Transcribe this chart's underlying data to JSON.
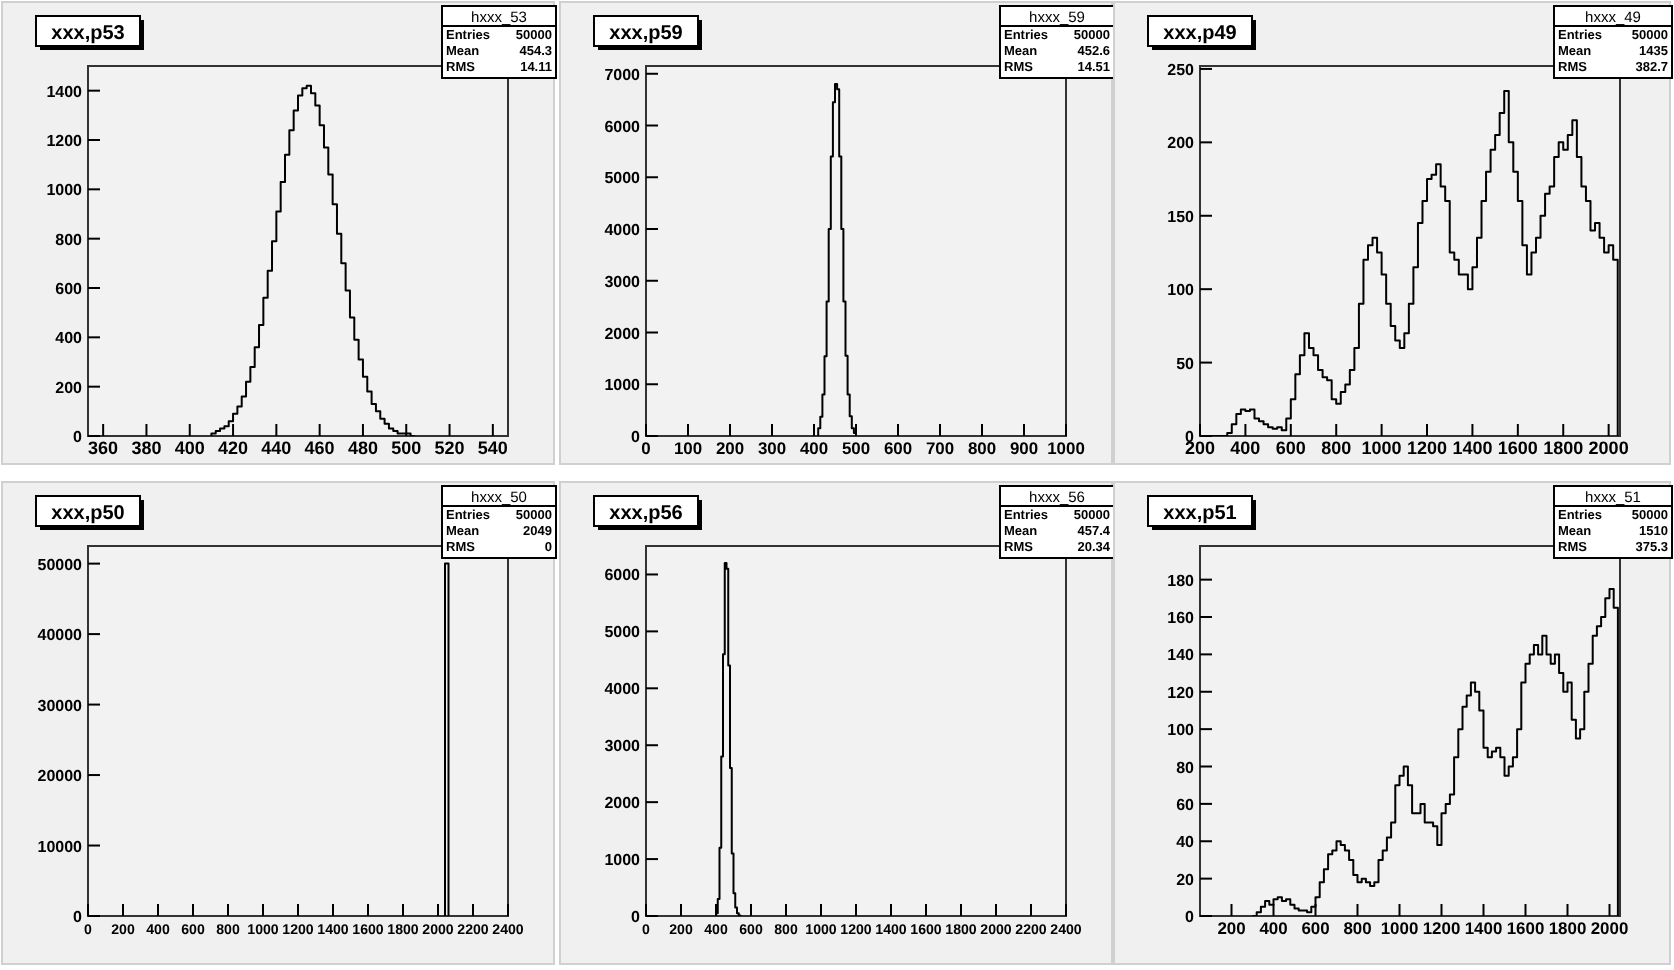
{
  "chart_data": [
    {
      "type": "histogram",
      "title": "xxx,p53",
      "color": "#000000",
      "annotations": [
        "hxxx_53",
        "Entries 50000",
        "Mean 454.3",
        "RMS 14.11"
      ],
      "xlim": [
        353,
        547
      ],
      "xticks": [
        360,
        380,
        400,
        420,
        440,
        460,
        480,
        500,
        520,
        540
      ],
      "ylim": [
        0,
        1500
      ],
      "yticks": [
        0,
        200,
        400,
        600,
        800,
        1000,
        1200,
        1400
      ],
      "bins": [
        410,
        412,
        414,
        416,
        418,
        420,
        422,
        424,
        426,
        428,
        430,
        432,
        434,
        436,
        438,
        440,
        442,
        444,
        446,
        448,
        450,
        452,
        454,
        456,
        458,
        460,
        462,
        464,
        466,
        468,
        470,
        472,
        474,
        476,
        478,
        480,
        482,
        484,
        486,
        488,
        490,
        492,
        494,
        496,
        498,
        500,
        502,
        504
      ],
      "values": [
        10,
        20,
        30,
        40,
        60,
        90,
        120,
        160,
        220,
        280,
        360,
        450,
        560,
        670,
        790,
        910,
        1030,
        1140,
        1240,
        1320,
        1380,
        1410,
        1420,
        1390,
        1340,
        1260,
        1170,
        1060,
        940,
        820,
        700,
        590,
        480,
        390,
        310,
        240,
        180,
        130,
        100,
        70,
        50,
        30,
        20,
        10,
        10,
        10,
        0
      ]
    },
    {
      "type": "histogram",
      "title": "xxx,p59",
      "color": "#000000",
      "annotations": [
        "hxxx_59",
        "Entries 50000",
        "Mean 452.6",
        "RMS 14.51"
      ],
      "xlim": [
        0,
        1000
      ],
      "xticks": [
        0,
        100,
        200,
        300,
        400,
        500,
        600,
        700,
        800,
        900,
        1000
      ],
      "ylim": [
        0,
        7150
      ],
      "yticks": [
        0,
        1000,
        2000,
        3000,
        4000,
        5000,
        6000,
        7000
      ],
      "bins": [
        410,
        415,
        420,
        425,
        430,
        435,
        440,
        445,
        450,
        455,
        460,
        465,
        470,
        475,
        480,
        485,
        490,
        495,
        500
      ],
      "values": [
        150,
        370,
        800,
        1540,
        2600,
        4000,
        5400,
        6450,
        6800,
        6700,
        5400,
        4000,
        2600,
        1550,
        800,
        380,
        150,
        60
      ]
    },
    {
      "type": "histogram",
      "title": "xxx,p49",
      "color": "#000000",
      "annotations": [
        "hxxx_49",
        "Entries 50000",
        "Mean 1435",
        "RMS 382.7"
      ],
      "xlim": [
        200,
        2050
      ],
      "xticks": [
        200,
        400,
        600,
        800,
        1000,
        1200,
        1400,
        1600,
        1800,
        2000
      ],
      "ylim": [
        0,
        252
      ],
      "yticks": [
        0,
        50,
        100,
        150,
        200,
        250
      ],
      "bins": [
        200,
        220,
        240,
        260,
        280,
        300,
        320,
        340,
        360,
        380,
        400,
        420,
        440,
        460,
        480,
        500,
        520,
        540,
        560,
        580,
        600,
        620,
        640,
        660,
        680,
        700,
        720,
        740,
        760,
        780,
        800,
        820,
        840,
        860,
        880,
        900,
        920,
        940,
        960,
        980,
        1000,
        1020,
        1040,
        1060,
        1080,
        1100,
        1120,
        1140,
        1160,
        1180,
        1200,
        1220,
        1240,
        1260,
        1280,
        1300,
        1320,
        1340,
        1360,
        1380,
        1400,
        1420,
        1440,
        1460,
        1480,
        1500,
        1520,
        1540,
        1560,
        1580,
        1600,
        1620,
        1640,
        1660,
        1680,
        1700,
        1720,
        1740,
        1760,
        1780,
        1800,
        1820,
        1840,
        1860,
        1880,
        1900,
        1920,
        1940,
        1960,
        1980,
        2000,
        2020,
        2040
      ],
      "values": [
        0,
        0,
        0,
        0,
        0,
        0,
        2,
        8,
        15,
        18,
        17,
        18,
        12,
        10,
        8,
        6,
        5,
        6,
        4,
        12,
        25,
        42,
        55,
        70,
        60,
        55,
        45,
        40,
        38,
        25,
        22,
        30,
        35,
        45,
        60,
        90,
        120,
        130,
        135,
        125,
        110,
        90,
        75,
        65,
        60,
        70,
        90,
        115,
        145,
        160,
        175,
        178,
        185,
        170,
        160,
        125,
        120,
        110,
        110,
        100,
        115,
        135,
        160,
        180,
        195,
        205,
        220,
        235,
        200,
        180,
        160,
        130,
        110,
        125,
        135,
        150,
        165,
        170,
        190,
        200,
        195,
        205,
        215,
        190,
        170,
        160,
        140,
        145,
        135,
        125,
        130,
        120
      ]
    },
    {
      "type": "histogram",
      "title": "xxx,p50",
      "color": "#000000",
      "annotations": [
        "hxxx_50",
        "Entries 50000",
        "Mean 2049",
        "RMS 0"
      ],
      "xlim": [
        0,
        2400
      ],
      "xticks": [
        0,
        200,
        400,
        600,
        800,
        1000,
        1200,
        1400,
        1600,
        1800,
        2000,
        2200,
        2400
      ],
      "ylim": [
        0,
        52500
      ],
      "yticks": [
        0,
        10000,
        20000,
        30000,
        40000,
        50000
      ],
      "bins": [
        2040,
        2060
      ],
      "values": [
        50000
      ]
    },
    {
      "type": "histogram",
      "title": "xxx,p56",
      "color": "#000000",
      "annotations": [
        "hxxx_56",
        "Entries 50000",
        "Mean 457.4",
        "RMS 20.34"
      ],
      "xlim": [
        0,
        2400
      ],
      "xticks": [
        0,
        200,
        400,
        600,
        800,
        1000,
        1200,
        1400,
        1600,
        1800,
        2000,
        2200,
        2400
      ],
      "ylim": [
        0,
        6500
      ],
      "yticks": [
        0,
        1000,
        2000,
        3000,
        4000,
        5000,
        6000
      ],
      "bins": [
        400,
        410,
        420,
        430,
        440,
        450,
        460,
        470,
        480,
        490,
        500,
        510,
        520,
        530,
        540
      ],
      "values": [
        50,
        300,
        1200,
        2800,
        4600,
        6200,
        6100,
        4400,
        2600,
        1100,
        400,
        150,
        50,
        10
      ]
    },
    {
      "type": "histogram",
      "title": "xxx,p51",
      "color": "#000000",
      "annotations": [
        "hxxx_51",
        "Entries 50000",
        "Mean 1510",
        "RMS 375.3"
      ],
      "xlim": [
        50,
        2050
      ],
      "xticks": [
        200,
        400,
        600,
        800,
        1000,
        1200,
        1400,
        1600,
        1800,
        2000
      ],
      "ylim": [
        0,
        198
      ],
      "yticks": [
        0,
        20,
        40,
        60,
        80,
        100,
        120,
        140,
        160,
        180
      ],
      "bins": [
        300,
        320,
        340,
        360,
        380,
        400,
        420,
        440,
        460,
        480,
        500,
        520,
        540,
        560,
        580,
        600,
        620,
        640,
        660,
        680,
        700,
        720,
        740,
        760,
        780,
        800,
        820,
        840,
        860,
        880,
        900,
        920,
        940,
        960,
        980,
        1000,
        1020,
        1040,
        1060,
        1080,
        1100,
        1120,
        1140,
        1160,
        1180,
        1200,
        1220,
        1240,
        1260,
        1280,
        1300,
        1320,
        1340,
        1360,
        1380,
        1400,
        1420,
        1440,
        1460,
        1480,
        1500,
        1520,
        1540,
        1560,
        1580,
        1600,
        1620,
        1640,
        1660,
        1680,
        1700,
        1720,
        1740,
        1760,
        1780,
        1800,
        1820,
        1840,
        1860,
        1880,
        1900,
        1920,
        1940,
        1960,
        1980,
        2000,
        2020,
        2040
      ],
      "values": [
        0,
        2,
        5,
        8,
        6,
        9,
        10,
        8,
        9,
        6,
        4,
        3,
        3,
        2,
        5,
        10,
        18,
        25,
        33,
        35,
        40,
        38,
        35,
        30,
        22,
        18,
        20,
        18,
        16,
        18,
        30,
        35,
        42,
        50,
        70,
        75,
        80,
        70,
        55,
        55,
        60,
        50,
        50,
        48,
        38,
        55,
        60,
        65,
        85,
        100,
        112,
        118,
        125,
        120,
        110,
        90,
        85,
        88,
        90,
        85,
        75,
        80,
        85,
        100,
        125,
        135,
        140,
        145,
        140,
        150,
        140,
        135,
        140,
        130,
        120,
        125,
        105,
        95,
        100,
        120,
        135,
        150,
        155,
        160,
        170,
        175,
        165
      ]
    }
  ]
}
